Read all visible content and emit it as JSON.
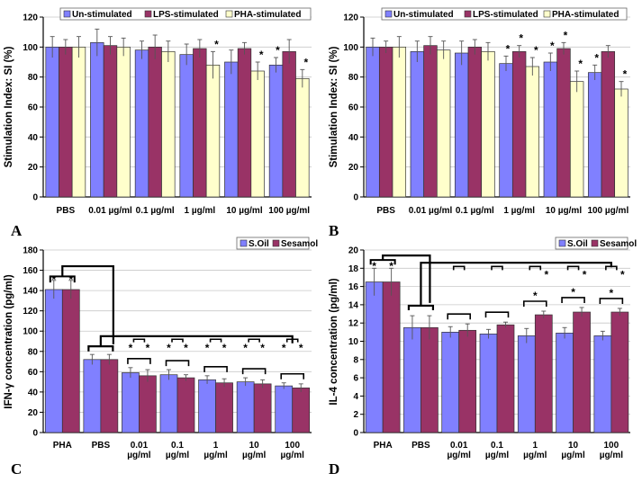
{
  "colors": {
    "blue": "#8080ff",
    "maroon": "#993366",
    "cream": "#ffffcc"
  },
  "chart_data": [
    {
      "panel": "A",
      "type": "bar",
      "ylabel": "Stimulation Index: SI (%)",
      "ylim": [
        0,
        120
      ],
      "yticks": [
        0,
        20,
        40,
        60,
        80,
        100,
        120
      ],
      "categories": [
        [
          "PBS"
        ],
        [
          "0.01 µg/ml"
        ],
        [
          "0.1 µg/ml"
        ],
        [
          "1 µg/ml"
        ],
        [
          "10 µg/ml"
        ],
        [
          "100 µg/ml"
        ]
      ],
      "series": [
        {
          "name": "Un-stimulated",
          "color": "blue",
          "values": [
            100,
            103,
            98,
            95,
            90,
            88
          ],
          "errors": [
            7,
            9,
            6,
            7,
            8,
            5
          ]
        },
        {
          "name": "LPS-stimulated",
          "color": "maroon",
          "values": [
            100,
            101,
            100,
            99,
            99,
            97
          ],
          "errors": [
            5,
            6,
            8,
            6,
            4,
            8
          ]
        },
        {
          "name": "PHA-stimulated",
          "color": "cream",
          "values": [
            100,
            100,
            97,
            88,
            84,
            79
          ],
          "errors": [
            7,
            6,
            7,
            9,
            6,
            6
          ]
        }
      ],
      "significance": [
        [
          0,
          0,
          0
        ],
        [
          0,
          0,
          0
        ],
        [
          0,
          0,
          0
        ],
        [
          0,
          0,
          1
        ],
        [
          0,
          0,
          1
        ],
        [
          1,
          0,
          1
        ]
      ],
      "sig_symbol": "*"
    },
    {
      "panel": "B",
      "type": "bar",
      "ylabel": "Stimulation Index: SI (%)",
      "ylim": [
        0,
        120
      ],
      "yticks": [
        0,
        20,
        40,
        60,
        80,
        100,
        120
      ],
      "categories": [
        [
          "PBS"
        ],
        [
          "0.01 µg/ml"
        ],
        [
          "0.1 µg/ml"
        ],
        [
          "1 µg/ml"
        ],
        [
          "10 µg/ml"
        ],
        [
          "100 µg/ml"
        ]
      ],
      "series": [
        {
          "name": "Un-stimulated",
          "color": "blue",
          "values": [
            100,
            97,
            96,
            89,
            90,
            83
          ],
          "errors": [
            6,
            7,
            8,
            5,
            6,
            5
          ]
        },
        {
          "name": "LPS-stimulated",
          "color": "maroon",
          "values": [
            100,
            101,
            100,
            97,
            99,
            97
          ],
          "errors": [
            4,
            6,
            5,
            4,
            4,
            4
          ]
        },
        {
          "name": "PHA-stimulated",
          "color": "cream",
          "values": [
            100,
            98,
            97,
            87,
            77,
            72
          ],
          "errors": [
            7,
            6,
            6,
            6,
            7,
            5
          ]
        }
      ],
      "significance": [
        [
          0,
          0,
          0
        ],
        [
          0,
          0,
          0
        ],
        [
          0,
          0,
          0
        ],
        [
          1,
          1,
          1
        ],
        [
          1,
          1,
          1
        ],
        [
          1,
          0,
          1
        ]
      ],
      "sig_symbol": "*"
    },
    {
      "panel": "C",
      "type": "bar",
      "ylabel": "IFN-γ concentration (pg/ml)",
      "ylim": [
        0,
        180
      ],
      "yticks": [
        0,
        20,
        40,
        60,
        80,
        100,
        120,
        140,
        160,
        180
      ],
      "categories": [
        [
          "PHA"
        ],
        [
          "PBS"
        ],
        [
          "0.01",
          "µg/ml"
        ],
        [
          "0.1",
          "µg/ml"
        ],
        [
          "1",
          "µg/ml"
        ],
        [
          "10",
          "µg/ml"
        ],
        [
          "100",
          "µg/ml"
        ]
      ],
      "series": [
        {
          "name": "S.Oil",
          "color": "blue",
          "values": [
            141,
            72,
            59,
            57,
            52,
            50,
            46
          ],
          "errors": [
            9,
            5,
            5,
            5,
            4,
            4,
            3
          ]
        },
        {
          "name": "Sesamol",
          "color": "maroon",
          "values": [
            141,
            72,
            56,
            54,
            49,
            48,
            44
          ],
          "errors": [
            9,
            5,
            6,
            3,
            4,
            4,
            4
          ]
        }
      ],
      "sig_symbol": "*"
    },
    {
      "panel": "D",
      "type": "bar",
      "ylabel": "IL-4 concentration (pg/ml)",
      "ylim": [
        0,
        20
      ],
      "yticks": [
        0,
        2,
        4,
        6,
        8,
        10,
        12,
        14,
        16,
        18,
        20
      ],
      "categories": [
        [
          "PHA"
        ],
        [
          "PBS"
        ],
        [
          "0.01",
          "µg/ml"
        ],
        [
          "0.1",
          "µg/ml"
        ],
        [
          "1",
          "µg/ml"
        ],
        [
          "10",
          "µg/ml"
        ],
        [
          "100",
          "µg/ml"
        ]
      ],
      "series": [
        {
          "name": "S.Oil",
          "color": "blue",
          "values": [
            16.5,
            11.5,
            11.0,
            10.8,
            10.6,
            10.9,
            10.6
          ],
          "errors": [
            1.5,
            1.3,
            0.6,
            0.5,
            0.8,
            0.6,
            0.5
          ]
        },
        {
          "name": "Sesamol",
          "color": "maroon",
          "values": [
            16.5,
            11.5,
            11.2,
            11.8,
            12.9,
            13.2,
            13.2
          ],
          "errors": [
            1.5,
            1.3,
            0.7,
            0.3,
            0.4,
            0.5,
            0.4
          ]
        }
      ],
      "sig_symbol": "*"
    }
  ]
}
